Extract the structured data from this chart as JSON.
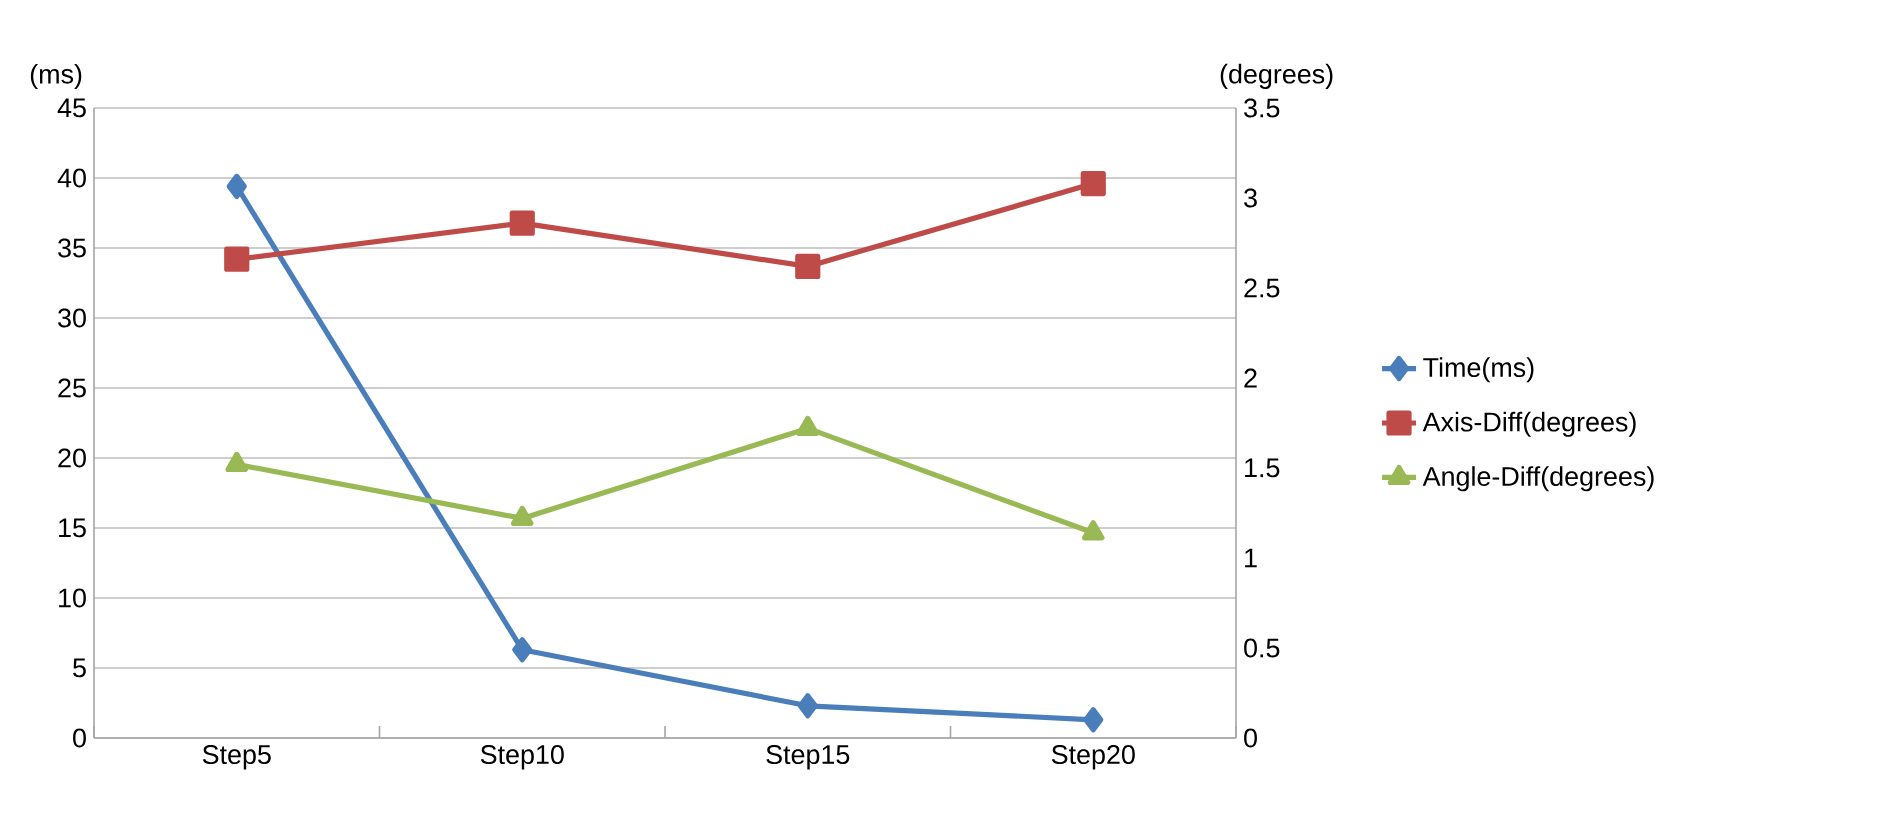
{
  "chart_data": {
    "type": "line",
    "ylabel": "(ms)",
    "y2label": "(degrees)",
    "categories": [
      "Step5",
      "Step10",
      "Step15",
      "Step20"
    ],
    "series": [
      {
        "name": "Time(ms)",
        "color": "#4a7ebb",
        "marker": "diamond",
        "values": [
          39.4,
          6.3,
          2.3,
          1.3
        ]
      },
      {
        "name": "Axis-Diff(degrees)",
        "color": "#be4b48",
        "marker": "square",
        "axis": "y2",
        "values": [
          2.66,
          2.86,
          2.62,
          3.08
        ]
      },
      {
        "name": "Angle-Diff(degrees)",
        "color": "#98b954",
        "marker": "triangle",
        "axis": "y2",
        "values": [
          1.52,
          1.22,
          1.72,
          1.14
        ]
      }
    ],
    "ylim": [
      0,
      45
    ],
    "yticks": [
      0,
      5,
      10,
      15,
      20,
      25,
      30,
      35,
      40,
      45
    ],
    "y2lim": [
      0,
      3.5
    ],
    "y2ticks": [
      0,
      0.5,
      1,
      1.5,
      2,
      2.5,
      3,
      3.5
    ],
    "grid": "y",
    "legend": "right"
  }
}
